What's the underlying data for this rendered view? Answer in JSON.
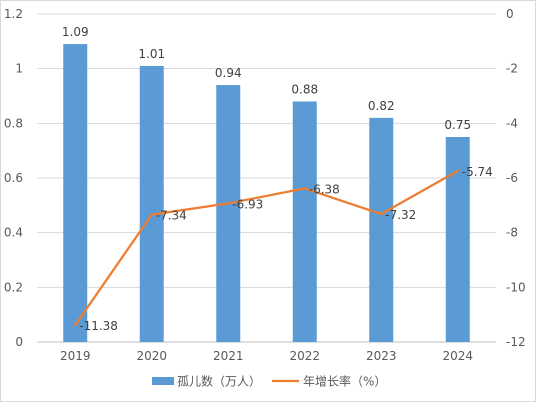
{
  "chart_data": {
    "type": "bar",
    "categories": [
      "2019",
      "2020",
      "2021",
      "2022",
      "2023",
      "2024"
    ],
    "series": [
      {
        "name": "孤儿数（万人）",
        "type": "bar",
        "axis": "left",
        "values": [
          1.09,
          1.01,
          0.94,
          0.88,
          0.82,
          0.75
        ],
        "labels": [
          "1.09",
          "1.01",
          "0.94",
          "0.88",
          "0.82",
          "0.75"
        ],
        "color": "#5b9bd5"
      },
      {
        "name": "年增长率（%）",
        "type": "line",
        "axis": "right",
        "values": [
          -11.38,
          -7.34,
          -6.93,
          -6.38,
          -7.32,
          -5.74
        ],
        "labels": [
          "-11.38",
          "-7.34",
          "-6.93",
          "-6.38",
          "-7.32",
          "-5.74"
        ],
        "color": "#ed7d31"
      }
    ],
    "y_left": {
      "ylim": [
        0,
        1.2
      ],
      "ticks": [
        "0",
        "0.2",
        "0.4",
        "0.6",
        "0.8",
        "1",
        "1.2"
      ]
    },
    "y_right": {
      "ylim": [
        -12,
        0
      ],
      "ticks": [
        "-12",
        "-10",
        "-8",
        "-6",
        "-4",
        "-2",
        "0"
      ]
    },
    "grid": true,
    "legend_position": "bottom"
  }
}
